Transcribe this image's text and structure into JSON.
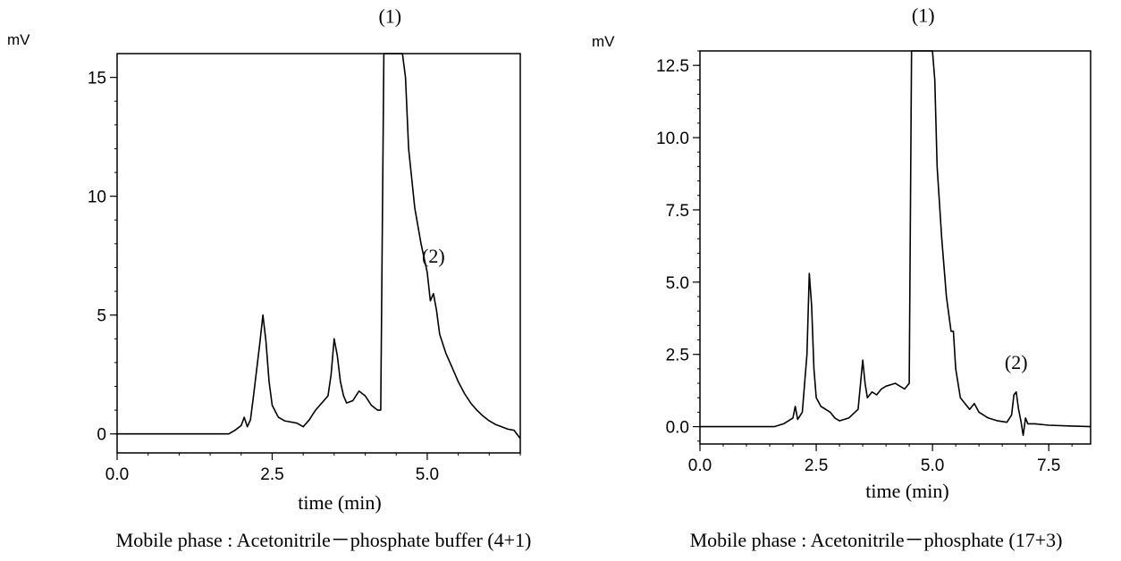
{
  "chart_data": [
    {
      "type": "line",
      "y_unit_label": "mV",
      "xlabel": "time (min)",
      "caption": "Mobile phase : Acetonitrile－phosphate  buffer (4+1)",
      "xlim": [
        0,
        6.5
      ],
      "ylim": [
        -0.8,
        16
      ],
      "x_ticks": [
        0.0,
        2.5,
        5.0
      ],
      "x_tick_labels": [
        "0.0",
        "2.5",
        "5.0"
      ],
      "y_ticks": [
        0,
        5,
        10,
        15
      ],
      "y_tick_labels": [
        "0",
        "5",
        "10",
        "15"
      ],
      "grid": false,
      "annotations": [
        {
          "text": "(1)",
          "x": 4.4,
          "y": 17.3
        },
        {
          "text": "(2)",
          "x": 5.1,
          "y": 7.2
        }
      ],
      "series": [
        {
          "x": [
            0.0,
            1.8,
            1.9,
            2.0,
            2.05,
            2.1,
            2.15,
            2.2,
            2.3,
            2.35,
            2.4,
            2.45,
            2.5,
            2.6,
            2.7,
            2.8,
            2.9,
            3.0,
            3.1,
            3.2,
            3.3,
            3.4,
            3.45,
            3.5,
            3.55,
            3.6,
            3.65,
            3.7,
            3.8,
            3.9,
            4.0,
            4.1,
            4.2,
            4.25,
            4.3,
            4.35,
            4.4,
            4.45,
            4.5,
            4.55,
            4.6,
            4.65,
            4.7,
            4.8,
            4.9,
            5.0,
            5.05,
            5.1,
            5.15,
            5.2,
            5.3,
            5.4,
            5.5,
            5.6,
            5.7,
            5.8,
            5.9,
            6.0,
            6.1,
            6.2,
            6.3,
            6.4,
            6.5
          ],
          "y": [
            0.0,
            0.0,
            0.15,
            0.35,
            0.7,
            0.3,
            0.6,
            1.6,
            3.8,
            5.0,
            3.9,
            2.2,
            1.2,
            0.7,
            0.55,
            0.5,
            0.45,
            0.3,
            0.6,
            1.0,
            1.3,
            1.6,
            2.5,
            4.0,
            3.3,
            2.2,
            1.6,
            1.3,
            1.4,
            1.8,
            1.6,
            1.2,
            1.0,
            1.0,
            16.0,
            16.0,
            16.0,
            16.0,
            16.0,
            16.0,
            16.0,
            15.0,
            12.0,
            9.5,
            8.0,
            6.8,
            5.6,
            5.9,
            5.2,
            4.2,
            3.4,
            2.8,
            2.2,
            1.7,
            1.3,
            1.0,
            0.75,
            0.55,
            0.4,
            0.3,
            0.2,
            0.15,
            -0.2
          ]
        }
      ]
    },
    {
      "type": "line",
      "y_unit_label": "mV",
      "xlabel": "time (min)",
      "caption": "Mobile phase : Acetonitrile－phosphate (17+3)",
      "xlim": [
        0,
        8.4
      ],
      "ylim": [
        -0.6,
        13
      ],
      "x_ticks": [
        0.0,
        2.5,
        5.0,
        7.5
      ],
      "x_tick_labels": [
        "0.0",
        "2.5",
        "5.0",
        "7.5"
      ],
      "y_ticks": [
        0.0,
        2.5,
        5.0,
        7.5,
        10.0,
        12.5
      ],
      "y_tick_labels": [
        "0.0",
        "2.5",
        "5.0",
        "7.5",
        "10.0",
        "12.5"
      ],
      "grid": false,
      "annotations": [
        {
          "text": "(1)",
          "x": 4.8,
          "y": 14.0
        },
        {
          "text": "(2)",
          "x": 6.8,
          "y": 2.0
        }
      ],
      "series": [
        {
          "x": [
            0.0,
            1.6,
            1.8,
            2.0,
            2.05,
            2.1,
            2.2,
            2.3,
            2.35,
            2.4,
            2.45,
            2.5,
            2.6,
            2.7,
            2.8,
            2.9,
            3.0,
            3.2,
            3.4,
            3.5,
            3.55,
            3.6,
            3.7,
            3.8,
            3.9,
            4.0,
            4.2,
            4.4,
            4.5,
            4.55,
            4.6,
            4.65,
            4.7,
            4.8,
            4.9,
            5.0,
            5.05,
            5.1,
            5.2,
            5.3,
            5.4,
            5.45,
            5.5,
            5.6,
            5.8,
            5.9,
            6.0,
            6.2,
            6.4,
            6.6,
            6.7,
            6.75,
            6.8,
            6.85,
            6.9,
            6.95,
            7.0,
            7.05,
            7.2,
            7.5,
            8.0,
            8.4
          ],
          "y": [
            0.0,
            0.0,
            0.1,
            0.3,
            0.7,
            0.25,
            0.5,
            2.5,
            5.3,
            4.2,
            2.0,
            1.0,
            0.7,
            0.6,
            0.5,
            0.3,
            0.2,
            0.3,
            0.6,
            2.3,
            1.5,
            1.0,
            1.2,
            1.1,
            1.3,
            1.4,
            1.5,
            1.3,
            1.5,
            13.0,
            13.0,
            13.0,
            13.0,
            13.0,
            13.0,
            13.0,
            12.0,
            9.0,
            6.5,
            4.5,
            3.3,
            3.3,
            2.0,
            1.0,
            0.6,
            0.8,
            0.5,
            0.3,
            0.2,
            0.15,
            0.4,
            1.1,
            1.2,
            0.6,
            0.2,
            -0.3,
            0.3,
            0.1,
            0.1,
            0.05,
            0.02,
            0.0
          ]
        }
      ]
    }
  ]
}
